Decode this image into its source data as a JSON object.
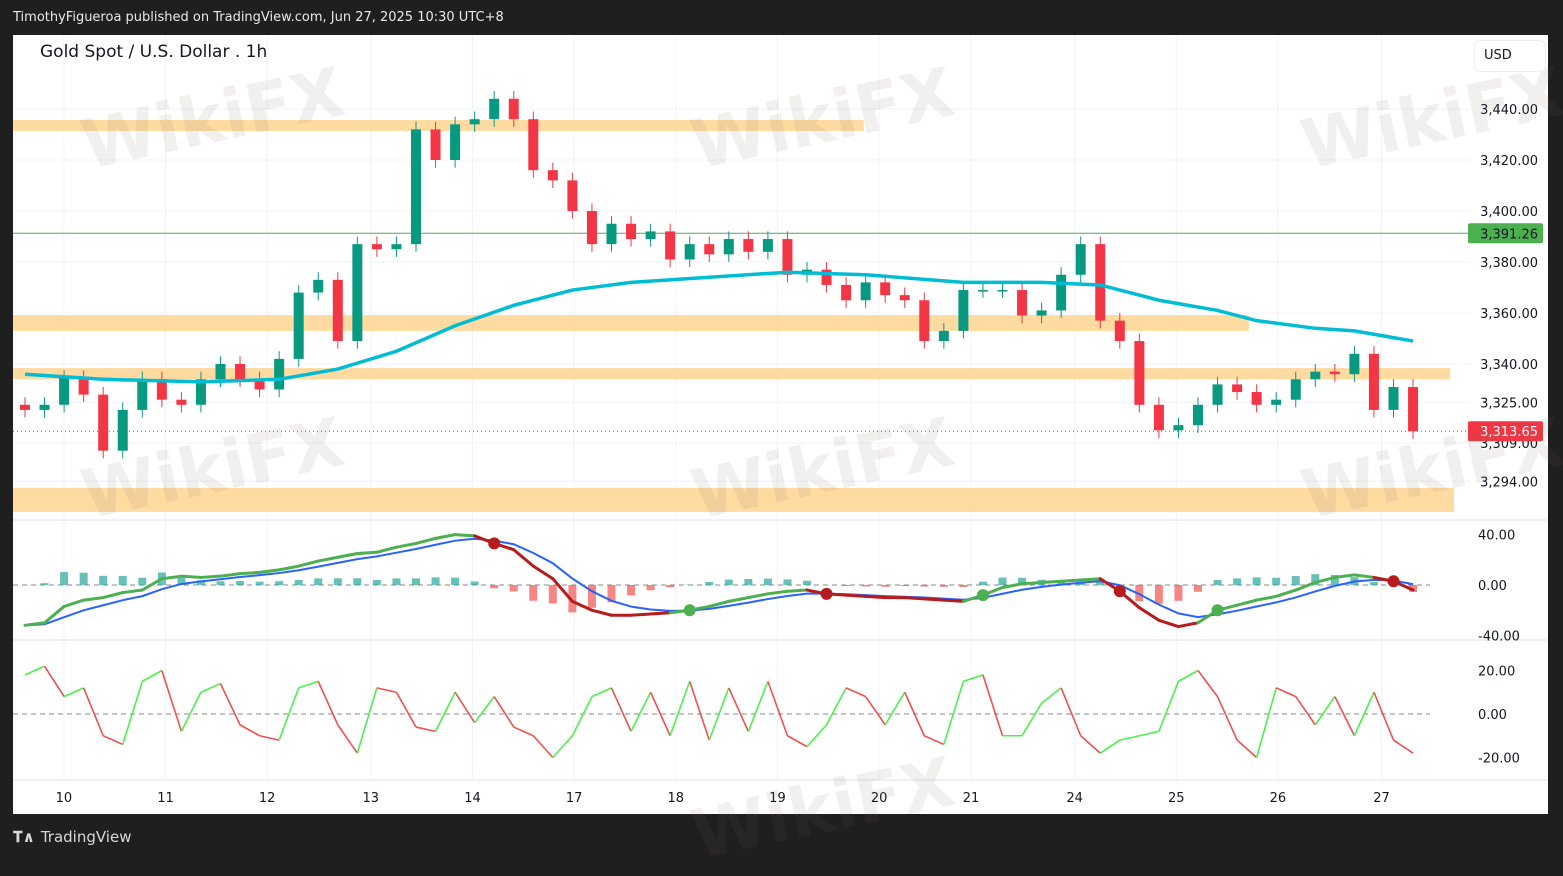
{
  "header": {
    "published": "TimothyFigueroa published on TradingView.com, Jun 27, 2025 10:30 UTC+8"
  },
  "chart_title": "Gold Spot / U.S. Dollar . 1h",
  "currency_button": "USD",
  "footer": {
    "logo_text": "TradingView"
  },
  "watermark": {
    "text": "WikiFX"
  },
  "colors": {
    "up": "#089981",
    "down": "#f23645",
    "ma": "#00bcd4",
    "zone": "#ffd391",
    "macd_up": "#4caf50",
    "macd_down": "#b71c1c",
    "signal": "#2962ff",
    "osc_up": "#4cf04c",
    "osc_down": "#f05050"
  },
  "chart_data": {
    "type": "candlestick",
    "title": "Gold Spot / U.S. Dollar . 1h",
    "y_ticks": [
      "3,440.00",
      "3,420.00",
      "3,400.00",
      "3,380.00",
      "3,360.00",
      "3,340.00",
      "3,325.00",
      "3,309.00",
      "3,294.00"
    ],
    "y_tick_values": [
      3440,
      3420,
      3400,
      3380,
      3360,
      3340,
      3325,
      3309,
      3294
    ],
    "x_ticks": [
      {
        "label": "10",
        "i": 2.5
      },
      {
        "label": "11",
        "i": 7.7
      },
      {
        "label": "12",
        "i": 12.9
      },
      {
        "label": "13",
        "i": 18.2
      },
      {
        "label": "14",
        "i": 23.4
      },
      {
        "label": "17",
        "i": 28.6
      },
      {
        "label": "18",
        "i": 33.8
      },
      {
        "label": "19",
        "i": 39.0
      },
      {
        "label": "20",
        "i": 44.2
      },
      {
        "label": "21",
        "i": 48.9
      },
      {
        "label": "24",
        "i": 54.2
      },
      {
        "label": "25",
        "i": 59.4
      },
      {
        "label": "26",
        "i": 64.6
      },
      {
        "label": "27",
        "i": 69.9
      }
    ],
    "close": [
      3322,
      3324,
      3334.5,
      3328,
      3306,
      3322,
      3334,
      3326,
      3324,
      3334,
      3340,
      3334,
      3330,
      3342,
      3368,
      3373,
      3349,
      3387,
      3385,
      3387,
      3432,
      3420,
      3434,
      3436,
      3444,
      3436,
      3416,
      3412,
      3400,
      3387,
      3395,
      3389,
      3392,
      3381,
      3387,
      3383,
      3389,
      3384,
      3389,
      3375,
      3377,
      3371,
      3365,
      3372,
      3367,
      3365,
      3349,
      3353,
      3369,
      3369,
      3369,
      3359,
      3361,
      3375,
      3387,
      3357,
      3349,
      3324,
      3314,
      3316,
      3324,
      3332,
      3329,
      3324,
      3326,
      3334,
      3337,
      3336,
      3344,
      3322,
      3331,
      3313.65
    ],
    "moving_average": [
      [
        0,
        3336
      ],
      [
        4,
        3334
      ],
      [
        9,
        3333
      ],
      [
        13,
        3334
      ],
      [
        16,
        3338
      ],
      [
        19,
        3345
      ],
      [
        22,
        3355
      ],
      [
        25,
        3363
      ],
      [
        28,
        3369
      ],
      [
        31,
        3372
      ],
      [
        35,
        3374
      ],
      [
        39,
        3376
      ],
      [
        43,
        3375
      ],
      [
        48,
        3372
      ],
      [
        52,
        3372
      ],
      [
        55,
        3371
      ],
      [
        58,
        3365
      ],
      [
        61,
        3361
      ],
      [
        63,
        3357
      ],
      [
        66,
        3354
      ],
      [
        68,
        3353
      ],
      [
        71,
        3349
      ]
    ],
    "price_lines": [
      {
        "value": 3391.26,
        "label": "3,391.26",
        "style": "solid",
        "color": "#4caf50"
      },
      {
        "value": 3313.65,
        "label": "3,313.65",
        "style": "dotted",
        "color": "#f23645"
      }
    ],
    "zones": [
      {
        "from": 3431.4,
        "to": 3435.7,
        "end_i": 42.9
      },
      {
        "from": 3353,
        "to": 3359.2,
        "end_i": 62.6
      },
      {
        "from": 3334,
        "to": 3338.4,
        "end_i": 72.9
      },
      {
        "from": 3282,
        "to": 3291.4,
        "end_i": 73.1
      }
    ],
    "macd": {
      "y_ticks": [
        "40.00",
        "0.00",
        "-40.00"
      ],
      "y_tick_values": [
        40,
        0,
        -40
      ],
      "values": [
        -32,
        -30,
        -17,
        -12,
        -10,
        -6,
        -4,
        5,
        7,
        6,
        7,
        9,
        10,
        12,
        15,
        19,
        22,
        25,
        26,
        30,
        33,
        37,
        40,
        39,
        33,
        28,
        15,
        5,
        -13,
        -20,
        -24,
        -24,
        -23,
        -22,
        -20,
        -17,
        -13,
        -10,
        -7,
        -5,
        -4,
        -7,
        -8,
        -9,
        -10,
        -10,
        -11,
        -12,
        -13,
        -8,
        -2,
        1,
        2,
        3,
        4,
        5,
        -5,
        -18,
        -28,
        -33,
        -30,
        -20,
        -16,
        -12,
        -9,
        -4,
        2,
        6,
        8,
        6,
        3,
        -4
      ]
    },
    "oscillator": {
      "y_ticks": [
        "20.00",
        "0.00",
        "-20.00"
      ],
      "y_tick_values": [
        20,
        0,
        -20
      ],
      "values": [
        18,
        22,
        8,
        12,
        -10,
        -14,
        15,
        20,
        -8,
        10,
        14,
        -5,
        -10,
        -12,
        12,
        15,
        -5,
        -18,
        12,
        10,
        -6,
        -8,
        10,
        -4,
        8,
        -6,
        -10,
        -20,
        -10,
        8,
        12,
        -8,
        10,
        -10,
        15,
        -12,
        12,
        -8,
        15,
        -10,
        -15,
        -5,
        12,
        8,
        -5,
        10,
        -10,
        -14,
        15,
        18,
        -10,
        -10,
        5,
        12,
        -10,
        -18,
        -12,
        -10,
        -8,
        15,
        20,
        8,
        -12,
        -20,
        12,
        8,
        -5,
        8,
        -10,
        10,
        -12,
        -18
      ]
    }
  }
}
